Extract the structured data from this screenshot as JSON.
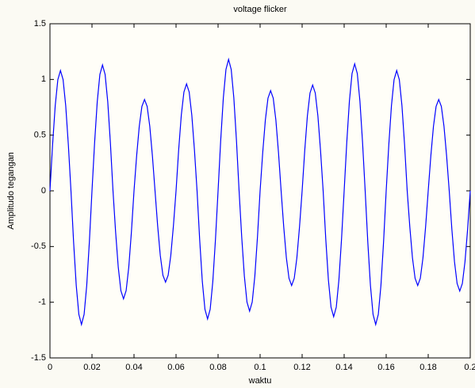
{
  "chart_data": {
    "type": "line",
    "title": "voltage flicker",
    "x_label": "waktu",
    "y_label": "Amplitudo tegangan",
    "x": [
      0,
      0.00125,
      0.0025,
      0.00375,
      0.005,
      0.00625,
      0.0075,
      0.00875,
      0.01,
      0.01125,
      0.0125,
      0.01375,
      0.015,
      0.01625,
      0.0175,
      0.01875,
      0.02,
      0.02125,
      0.0225,
      0.02375,
      0.025,
      0.02625,
      0.0275,
      0.02875,
      0.03,
      0.03125,
      0.0325,
      0.03375,
      0.035,
      0.03625,
      0.0375,
      0.03875,
      0.04,
      0.04125,
      0.0425,
      0.04375,
      0.045,
      0.04625,
      0.0475,
      0.04875,
      0.05,
      0.05125,
      0.0525,
      0.05375,
      0.055,
      0.05625,
      0.0575,
      0.05875,
      0.06,
      0.06125,
      0.0625,
      0.06375,
      0.065,
      0.06625,
      0.0675,
      0.06875,
      0.07,
      0.07125,
      0.0725,
      0.07375,
      0.075,
      0.07625,
      0.0775,
      0.07875,
      0.08,
      0.08125,
      0.0825,
      0.08375,
      0.085,
      0.08625,
      0.0875,
      0.08875,
      0.09,
      0.09125,
      0.0925,
      0.09375,
      0.095,
      0.09625,
      0.0975,
      0.09875,
      0.1,
      0.10125,
      0.1025,
      0.10375,
      0.105,
      0.10625,
      0.1075,
      0.10875,
      0.11,
      0.11125,
      0.1125,
      0.11375,
      0.115,
      0.11625,
      0.1175,
      0.11875,
      0.12,
      0.12125,
      0.1225,
      0.12375,
      0.125,
      0.12625,
      0.1275,
      0.12875,
      0.13,
      0.13125,
      0.1325,
      0.13375,
      0.135,
      0.13625,
      0.1375,
      0.13875,
      0.14,
      0.14125,
      0.1425,
      0.14375,
      0.145,
      0.14625,
      0.1475,
      0.14875,
      0.15,
      0.15125,
      0.1525,
      0.15375,
      0.155,
      0.15625,
      0.1575,
      0.15875,
      0.16,
      0.16125,
      0.1625,
      0.16375,
      0.165,
      0.16625,
      0.1675,
      0.16875,
      0.17,
      0.17125,
      0.1725,
      0.17375,
      0.175,
      0.17625,
      0.1775,
      0.17875,
      0.18,
      0.18125,
      0.1825,
      0.18375,
      0.185,
      0.18625,
      0.1875,
      0.18875,
      0.19,
      0.19125,
      0.1925,
      0.19375,
      0.195,
      0.19625,
      0.1975,
      0.19875,
      0.2
    ],
    "series": [
      {
        "color": "#0000ff",
        "values": [
          0,
          0.414,
          0.764,
          0.998,
          1.08,
          0.998,
          0.764,
          0.414,
          0,
          -0.46,
          -0.848,
          -1.109,
          -1.2,
          -1.109,
          -0.848,
          -0.46,
          0,
          0.433,
          0.799,
          1.044,
          1.13,
          1.044,
          0.799,
          0.433,
          0,
          -0.372,
          -0.686,
          -0.896,
          -0.97,
          -0.896,
          -0.686,
          -0.372,
          0,
          0.314,
          0.58,
          0.758,
          0.82,
          0.758,
          0.58,
          0.314,
          0,
          -0.314,
          -0.58,
          -0.758,
          -0.82,
          -0.758,
          -0.58,
          -0.314,
          0,
          0.368,
          0.679,
          0.887,
          0.96,
          0.887,
          0.679,
          0.368,
          0,
          -0.44,
          -0.813,
          -1.063,
          -1.15,
          -1.063,
          -0.813,
          -0.44,
          0,
          0.452,
          0.834,
          1.09,
          1.18,
          1.09,
          0.834,
          0.452,
          0,
          -0.414,
          -0.764,
          -0.998,
          -1.08,
          -0.998,
          -0.764,
          -0.414,
          0,
          0.344,
          0.636,
          0.832,
          0.9,
          0.832,
          0.636,
          0.344,
          0,
          -0.325,
          -0.601,
          -0.785,
          -0.85,
          -0.785,
          -0.601,
          -0.325,
          0,
          0.364,
          0.672,
          0.878,
          0.95,
          0.878,
          0.672,
          0.364,
          0,
          -0.433,
          -0.799,
          -1.044,
          -1.13,
          -1.044,
          -0.799,
          -0.433,
          0,
          0.436,
          0.806,
          1.053,
          1.14,
          1.053,
          0.806,
          0.436,
          0,
          -0.46,
          -0.848,
          -1.109,
          -1.2,
          -1.109,
          -0.848,
          -0.46,
          0,
          0.414,
          0.764,
          0.998,
          1.08,
          0.998,
          0.764,
          0.414,
          0,
          -0.325,
          -0.601,
          -0.785,
          -0.85,
          -0.785,
          -0.601,
          -0.325,
          0,
          0.314,
          0.58,
          0.758,
          0.82,
          0.758,
          0.58,
          0.314,
          0,
          -0.344,
          -0.636,
          -0.832,
          -0.9,
          -0.832,
          -0.636,
          -0.344,
          0
        ]
      }
    ],
    "xlim": [
      0,
      0.2
    ],
    "xticks": [
      0,
      0.02,
      0.04,
      0.06,
      0.08,
      0.1,
      0.12,
      0.14,
      0.16,
      0.18,
      0.2
    ],
    "ylim": [
      -1.5,
      1.5
    ],
    "yticks": [
      -1.5,
      -1,
      -0.5,
      0,
      0.5,
      1,
      1.5
    ]
  }
}
